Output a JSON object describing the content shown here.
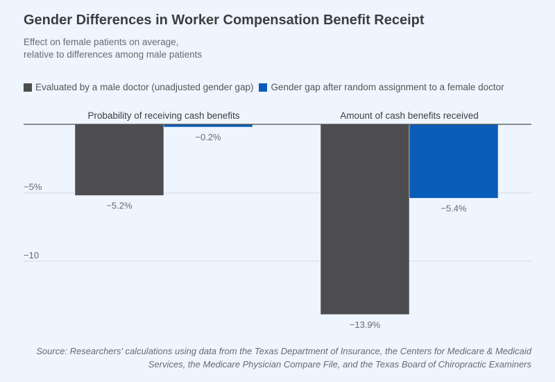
{
  "chart_data": {
    "type": "bar",
    "title": "Gender Differences in Worker Compensation Benefit Receipt",
    "subtitle": [
      "Effect on female patients on average,",
      "relative to differences among male patients"
    ],
    "categories": [
      "Probability of receiving cash benefits",
      "Amount of cash benefits received"
    ],
    "series": [
      {
        "name": "Evaluated by a male doctor (unadjusted gender gap)",
        "color": "#4d4d4f",
        "values": [
          -5.2,
          -13.9
        ],
        "labels": [
          "−5.2%",
          "−13.9%"
        ]
      },
      {
        "name": "Gender gap after random assignment to a female doctor",
        "color": "#0a5cb9",
        "values": [
          -0.2,
          -5.4
        ],
        "labels": [
          "−0.2%",
          "−5.4%"
        ]
      }
    ],
    "yticks": [
      {
        "value": -5,
        "label": "−5%"
      },
      {
        "value": -10,
        "label": "−10"
      }
    ],
    "ylim": [
      -14.5,
      0
    ],
    "legend": "top-left",
    "grid": true,
    "source": [
      "Source: Researchers' calculations using data from the Texas Department of Insurance, the Centers for Medicare & Medicaid",
      "Services, the Medicare Physician Compare File, and the Texas Board of Chiropractic Examiners"
    ]
  }
}
